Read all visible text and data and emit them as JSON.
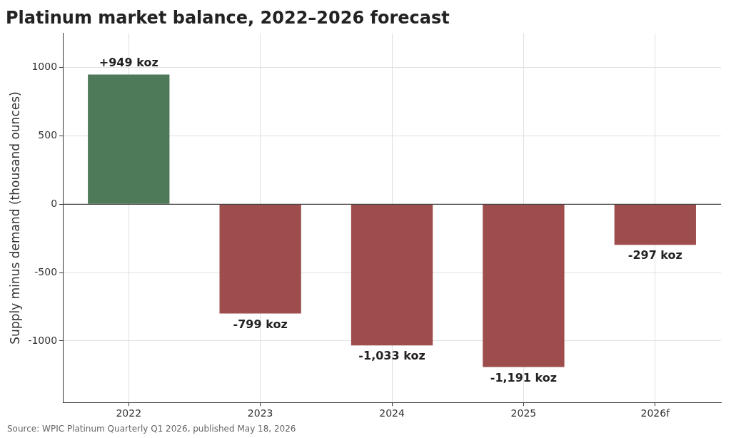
{
  "chart_data": {
    "type": "bar",
    "title": "Platinum market balance, 2022–2026 forecast",
    "ylabel": "Supply minus demand (thousand ounces)",
    "categories": [
      "2022",
      "2023",
      "2024",
      "2025",
      "2026f"
    ],
    "values": [
      949,
      -799,
      -1033,
      -1191,
      -297
    ],
    "colors": [
      "#4e7a5a",
      "#9e4d4d",
      "#9e4d4d",
      "#9e4d4d",
      "#9e4d4d"
    ],
    "value_labels": [
      "+949 koz",
      "-799 koz",
      "-1,033 koz",
      "-1,191 koz",
      "-297 koz"
    ],
    "ylim": [
      -1450,
      1250
    ],
    "yticks": [
      -1000,
      -500,
      0,
      500,
      1000
    ],
    "grid": true,
    "ref_lines": [
      {
        "axis": "y",
        "value": 0,
        "color": "#444444"
      }
    ],
    "annotations": [
      "Source: WPIC Platinum Quarterly Q1 2026, published May 18, 2026"
    ]
  }
}
